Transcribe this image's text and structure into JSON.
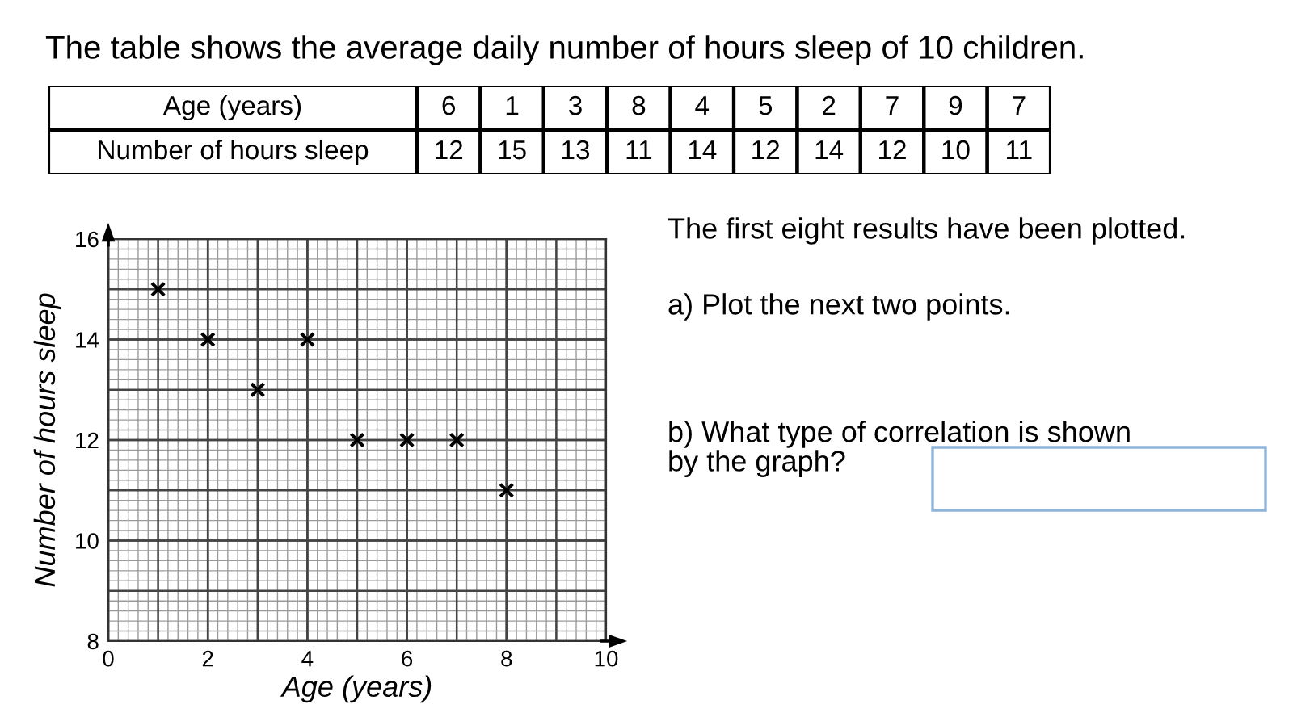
{
  "chart_data": [
    {
      "type": "heatmap",
      "title": "The table shows the average daily number of hours sleep of 10 children.",
      "xlabel": "Age (years)",
      "categories": [
        "6",
        "1",
        "3",
        "8",
        "4",
        "5",
        "2",
        "7",
        "9",
        "7"
      ],
      "y_categories": [
        "Number of hours sleep"
      ],
      "cells": [
        [
          12,
          15,
          13,
          11,
          14,
          12,
          14,
          12,
          10,
          11
        ]
      ],
      "data_labels": true
    },
    {
      "type": "scatter",
      "xlabel": "Age (years)",
      "ylabel": "Number of hours sleep",
      "x": [
        1,
        2,
        3,
        4,
        5,
        6,
        7,
        8
      ],
      "values": [
        15,
        14,
        13,
        14,
        12,
        12,
        12,
        11
      ],
      "color": "#000000",
      "marker": "cross",
      "xlim": [
        0,
        10
      ],
      "ylim": [
        8,
        16
      ],
      "xticks": [
        0,
        2,
        4,
        6,
        8,
        10
      ],
      "yticks": [
        8,
        10,
        12,
        14,
        16
      ],
      "grid": true,
      "annotations": [
        "The first eight results have been plotted.",
        "a) Plot the next two points.",
        "b) What type of correlation is shown\nby the graph?"
      ]
    }
  ]
}
